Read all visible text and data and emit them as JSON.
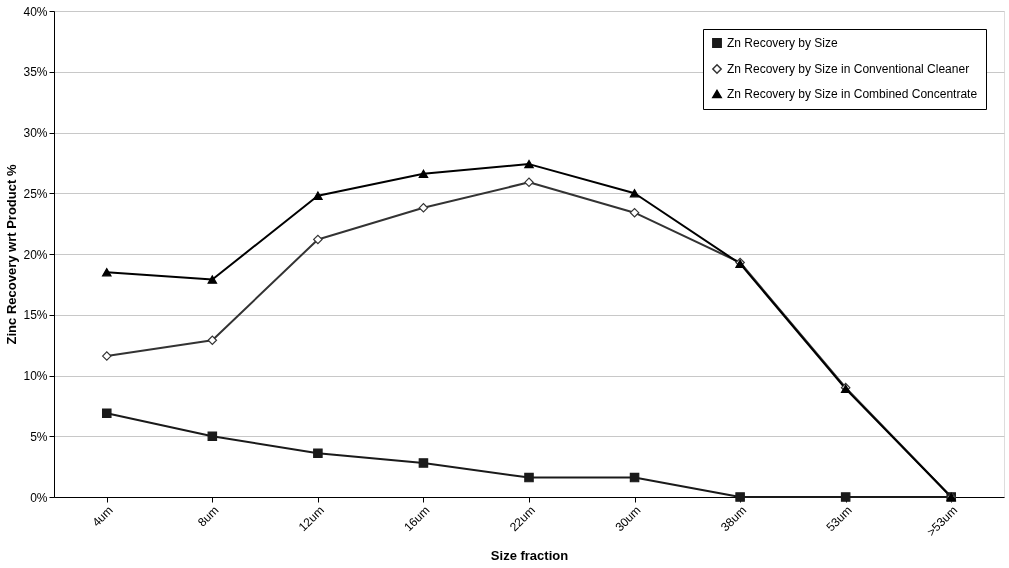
{
  "chart_data": {
    "type": "line",
    "xlabel": "Size fraction",
    "ylabel": "Zinc Recovery wrt Product %",
    "categories": [
      "4um",
      "8um",
      "12um",
      "16um",
      "22um",
      "30um",
      "38um",
      "53um",
      ">53um"
    ],
    "series": [
      {
        "name": "Zn Recovery by Size",
        "color": "#1a1a1a",
        "marker": "square",
        "values": [
          6.9,
          5.0,
          3.6,
          2.8,
          1.6,
          1.6,
          0,
          0,
          0
        ]
      },
      {
        "name": "Zn Recovery by Size in Conventional Cleaner",
        "color": "#333333",
        "marker": "diamond",
        "values": [
          11.6,
          12.9,
          21.2,
          23.8,
          25.9,
          23.4,
          19.3,
          9.0,
          0
        ]
      },
      {
        "name": "Zn Recovery by Size in Combined Concentrate",
        "color": "#000000",
        "marker": "triangle",
        "values": [
          18.5,
          17.9,
          24.8,
          26.6,
          27.4,
          25.0,
          19.2,
          8.9,
          0
        ]
      }
    ],
    "ylim": [
      0,
      40
    ],
    "yticks": [
      {
        "value": 0,
        "label": "0%"
      },
      {
        "value": 5,
        "label": "5%"
      },
      {
        "value": 10,
        "label": "10%"
      },
      {
        "value": 15,
        "label": "15%"
      },
      {
        "value": 20,
        "label": "20%"
      },
      {
        "value": 25,
        "label": "25%"
      },
      {
        "value": 30,
        "label": "30%"
      },
      {
        "value": 35,
        "label": "35%"
      },
      {
        "value": 40,
        "label": "40%"
      }
    ],
    "grid": "y",
    "legend": "top right",
    "line_style": "solid"
  }
}
